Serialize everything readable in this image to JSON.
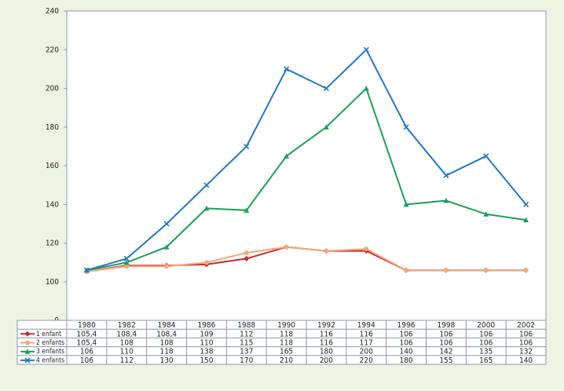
{
  "chart_data": {
    "type": "line",
    "categories": [
      "1980",
      "1982",
      "1984",
      "1986",
      "1988",
      "1990",
      "1992",
      "1994",
      "1996",
      "1998",
      "2000",
      "2002"
    ],
    "series": [
      {
        "name": "1 enfant",
        "color": "#c8282e",
        "marker": "diamond",
        "values": [
          105.4,
          108.4,
          108.4,
          109,
          112,
          118,
          116,
          116,
          106,
          106,
          106,
          106
        ],
        "value_labels": [
          "105,4",
          "108,4",
          "108,4",
          "109",
          "112",
          "118",
          "116",
          "116",
          "106",
          "106",
          "106",
          "106"
        ]
      },
      {
        "name": "2 enfants",
        "color": "#f5a878",
        "marker": "circle",
        "values": [
          105.4,
          108,
          108,
          110,
          115,
          118,
          116,
          117,
          106,
          106,
          106,
          106
        ],
        "value_labels": [
          "105,4",
          "108",
          "108",
          "110",
          "115",
          "118",
          "116",
          "117",
          "106",
          "106",
          "106",
          "106"
        ]
      },
      {
        "name": "3 enfants",
        "color": "#1e9e5c",
        "marker": "triangle",
        "values": [
          106,
          110,
          118,
          138,
          137,
          165,
          180,
          200,
          140,
          142,
          135,
          132
        ]
      },
      {
        "name": "4 enfants",
        "color": "#2277c6",
        "marker": "x",
        "values": [
          106,
          112,
          130,
          150,
          170,
          210,
          200,
          220,
          180,
          155,
          165,
          140
        ]
      }
    ],
    "ylim": [
      0,
      240
    ],
    "axis_break": [
      0,
      100
    ],
    "yticks": [
      0,
      100,
      120,
      140,
      160,
      180,
      200,
      220,
      240
    ]
  }
}
